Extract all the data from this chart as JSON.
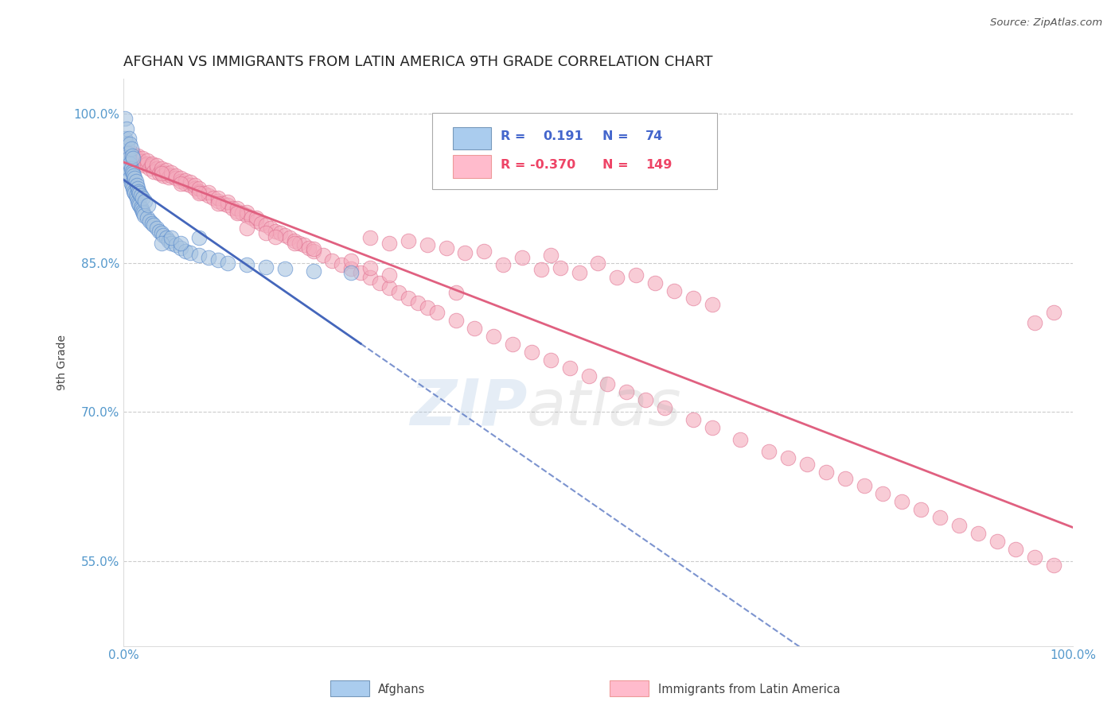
{
  "title": "AFGHAN VS IMMIGRANTS FROM LATIN AMERICA 9TH GRADE CORRELATION CHART",
  "source_text": "Source: ZipAtlas.com",
  "ylabel": "9th Grade",
  "xlim": [
    0.0,
    1.0
  ],
  "ylim": [
    0.465,
    1.035
  ],
  "yticks": [
    0.55,
    0.7,
    0.85,
    1.0
  ],
  "ytick_labels": [
    "55.0%",
    "70.0%",
    "85.0%",
    "100.0%"
  ],
  "xticks": [
    0.0,
    1.0
  ],
  "xtick_labels": [
    "0.0%",
    "100.0%"
  ],
  "blue_color": "#A8C4E0",
  "blue_edge_color": "#5588CC",
  "pink_color": "#F4AABC",
  "pink_edge_color": "#E07090",
  "blue_line_color": "#4466BB",
  "pink_line_color": "#E06080",
  "title_color": "#222222",
  "tick_color": "#5599CC",
  "grid_color": "#CCCCCC",
  "background_color": "#FFFFFF",
  "blue_scatter_x": [
    0.002,
    0.002,
    0.003,
    0.003,
    0.004,
    0.004,
    0.005,
    0.005,
    0.006,
    0.006,
    0.006,
    0.007,
    0.007,
    0.007,
    0.008,
    0.008,
    0.008,
    0.009,
    0.009,
    0.009,
    0.01,
    0.01,
    0.01,
    0.011,
    0.011,
    0.012,
    0.012,
    0.013,
    0.013,
    0.014,
    0.014,
    0.015,
    0.015,
    0.016,
    0.016,
    0.017,
    0.017,
    0.018,
    0.018,
    0.019,
    0.02,
    0.02,
    0.021,
    0.022,
    0.023,
    0.025,
    0.026,
    0.028,
    0.03,
    0.032,
    0.035,
    0.038,
    0.04,
    0.042,
    0.045,
    0.048,
    0.05,
    0.055,
    0.06,
    0.065,
    0.07,
    0.08,
    0.09,
    0.1,
    0.11,
    0.13,
    0.15,
    0.17,
    0.2,
    0.24,
    0.04,
    0.05,
    0.06,
    0.08
  ],
  "blue_scatter_y": [
    0.975,
    0.995,
    0.96,
    0.985,
    0.95,
    0.97,
    0.945,
    0.96,
    0.94,
    0.955,
    0.975,
    0.935,
    0.95,
    0.97,
    0.93,
    0.945,
    0.965,
    0.928,
    0.942,
    0.958,
    0.925,
    0.94,
    0.955,
    0.922,
    0.938,
    0.92,
    0.935,
    0.918,
    0.932,
    0.915,
    0.928,
    0.912,
    0.925,
    0.91,
    0.922,
    0.908,
    0.92,
    0.906,
    0.918,
    0.904,
    0.902,
    0.915,
    0.9,
    0.898,
    0.912,
    0.895,
    0.908,
    0.892,
    0.89,
    0.888,
    0.885,
    0.882,
    0.88,
    0.878,
    0.875,
    0.872,
    0.87,
    0.868,
    0.865,
    0.862,
    0.86,
    0.858,
    0.855,
    0.853,
    0.85,
    0.848,
    0.846,
    0.844,
    0.842,
    0.84,
    0.87,
    0.875,
    0.87,
    0.875
  ],
  "pink_scatter_x": [
    0.005,
    0.008,
    0.01,
    0.012,
    0.015,
    0.015,
    0.018,
    0.02,
    0.02,
    0.022,
    0.025,
    0.025,
    0.028,
    0.03,
    0.03,
    0.032,
    0.035,
    0.035,
    0.038,
    0.04,
    0.04,
    0.042,
    0.045,
    0.045,
    0.048,
    0.05,
    0.05,
    0.055,
    0.055,
    0.06,
    0.06,
    0.065,
    0.065,
    0.07,
    0.07,
    0.075,
    0.075,
    0.08,
    0.08,
    0.085,
    0.09,
    0.09,
    0.095,
    0.1,
    0.1,
    0.105,
    0.11,
    0.11,
    0.115,
    0.12,
    0.12,
    0.125,
    0.13,
    0.13,
    0.135,
    0.14,
    0.14,
    0.145,
    0.15,
    0.155,
    0.16,
    0.165,
    0.17,
    0.175,
    0.18,
    0.185,
    0.19,
    0.195,
    0.2,
    0.21,
    0.22,
    0.23,
    0.24,
    0.25,
    0.26,
    0.27,
    0.28,
    0.29,
    0.3,
    0.31,
    0.32,
    0.33,
    0.35,
    0.37,
    0.39,
    0.41,
    0.43,
    0.45,
    0.47,
    0.49,
    0.51,
    0.53,
    0.55,
    0.57,
    0.6,
    0.62,
    0.65,
    0.68,
    0.7,
    0.72,
    0.74,
    0.76,
    0.78,
    0.8,
    0.82,
    0.84,
    0.86,
    0.88,
    0.9,
    0.92,
    0.94,
    0.96,
    0.98,
    0.96,
    0.98,
    0.45,
    0.5,
    0.38,
    0.42,
    0.32,
    0.36,
    0.28,
    0.48,
    0.34,
    0.52,
    0.3,
    0.4,
    0.44,
    0.56,
    0.26,
    0.58,
    0.54,
    0.46,
    0.6,
    0.62,
    0.15,
    0.13,
    0.16,
    0.18,
    0.2,
    0.24,
    0.26,
    0.28,
    0.35,
    0.04,
    0.06,
    0.08,
    0.1,
    0.12
  ],
  "pink_scatter_y": [
    0.96,
    0.955,
    0.96,
    0.958,
    0.955,
    0.958,
    0.952,
    0.95,
    0.955,
    0.948,
    0.95,
    0.953,
    0.945,
    0.948,
    0.95,
    0.942,
    0.945,
    0.948,
    0.94,
    0.942,
    0.945,
    0.938,
    0.94,
    0.943,
    0.936,
    0.938,
    0.941,
    0.935,
    0.938,
    0.932,
    0.935,
    0.93,
    0.933,
    0.928,
    0.931,
    0.925,
    0.928,
    0.922,
    0.925,
    0.92,
    0.918,
    0.921,
    0.915,
    0.912,
    0.915,
    0.91,
    0.908,
    0.911,
    0.905,
    0.902,
    0.905,
    0.9,
    0.898,
    0.901,
    0.895,
    0.892,
    0.895,
    0.89,
    0.888,
    0.885,
    0.882,
    0.88,
    0.878,
    0.875,
    0.872,
    0.87,
    0.868,
    0.865,
    0.862,
    0.858,
    0.852,
    0.848,
    0.844,
    0.84,
    0.835,
    0.83,
    0.825,
    0.82,
    0.815,
    0.81,
    0.805,
    0.8,
    0.792,
    0.784,
    0.776,
    0.768,
    0.76,
    0.752,
    0.744,
    0.736,
    0.728,
    0.72,
    0.712,
    0.704,
    0.692,
    0.684,
    0.672,
    0.66,
    0.654,
    0.648,
    0.64,
    0.633,
    0.626,
    0.618,
    0.61,
    0.602,
    0.594,
    0.586,
    0.578,
    0.57,
    0.562,
    0.554,
    0.546,
    0.79,
    0.8,
    0.858,
    0.85,
    0.862,
    0.855,
    0.868,
    0.86,
    0.87,
    0.84,
    0.865,
    0.835,
    0.872,
    0.848,
    0.843,
    0.83,
    0.875,
    0.822,
    0.838,
    0.845,
    0.815,
    0.808,
    0.88,
    0.885,
    0.876,
    0.87,
    0.864,
    0.852,
    0.845,
    0.838,
    0.82,
    0.94,
    0.93,
    0.92,
    0.91,
    0.9
  ]
}
